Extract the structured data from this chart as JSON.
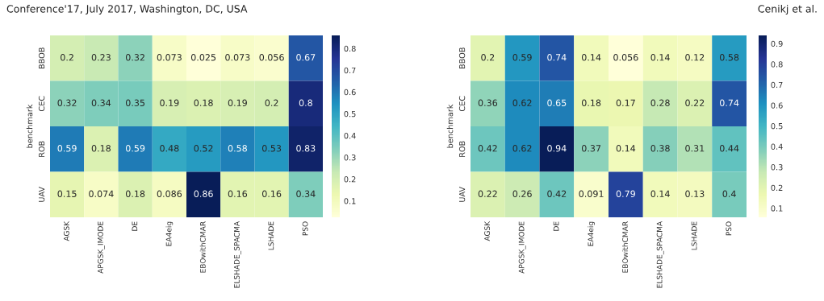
{
  "chart_data": [
    {
      "type": "heatmap",
      "ylabel": "benchmark",
      "annotations": [
        "Conference'17, July 2017, Washington, DC, USA"
      ],
      "categories": [
        "AGSK",
        "APGSK_IMODE",
        "DE",
        "EA4eig",
        "EBOwithCMAR",
        "ELSHADE_SPACMA",
        "LSHADE",
        "PSO"
      ],
      "y_categories": [
        "BBOB",
        "CEC",
        "ROB",
        "UAV"
      ],
      "cells": [
        [
          0.2,
          0.23,
          0.32,
          0.073,
          0.025,
          0.073,
          0.056,
          0.67
        ],
        [
          0.32,
          0.34,
          0.35,
          0.19,
          0.18,
          0.19,
          0.2,
          0.8
        ],
        [
          0.59,
          0.18,
          0.59,
          0.48,
          0.52,
          0.58,
          0.53,
          0.83
        ],
        [
          0.15,
          0.074,
          0.18,
          0.086,
          0.86,
          0.16,
          0.16,
          0.34
        ]
      ],
      "clim": [
        0.025,
        0.86
      ],
      "cticks": [
        0.1,
        0.2,
        0.3,
        0.4,
        0.5,
        0.6,
        0.7,
        0.8
      ],
      "data_labels": true
    },
    {
      "type": "heatmap",
      "ylabel": "benchmark",
      "annotations": [
        "Cenikj et al."
      ],
      "categories": [
        "AGSK",
        "APGSK_IMODE",
        "DE",
        "EA4eig",
        "EBOwithCMAR",
        "ELSHADE_SPACMA",
        "LSHADE",
        "PSO"
      ],
      "y_categories": [
        "BBOB",
        "CEC",
        "ROB",
        "UAV"
      ],
      "cells": [
        [
          0.2,
          0.59,
          0.74,
          0.14,
          0.056,
          0.14,
          0.12,
          0.58
        ],
        [
          0.36,
          0.62,
          0.65,
          0.18,
          0.17,
          0.28,
          0.22,
          0.74
        ],
        [
          0.42,
          0.62,
          0.94,
          0.37,
          0.14,
          0.38,
          0.31,
          0.44
        ],
        [
          0.22,
          0.26,
          0.42,
          0.091,
          0.79,
          0.14,
          0.13,
          0.4
        ]
      ],
      "clim": [
        0.056,
        0.94
      ],
      "cticks": [
        0.1,
        0.2,
        0.3,
        0.4,
        0.5,
        0.6,
        0.7,
        0.8,
        0.9
      ],
      "data_labels": true
    }
  ]
}
